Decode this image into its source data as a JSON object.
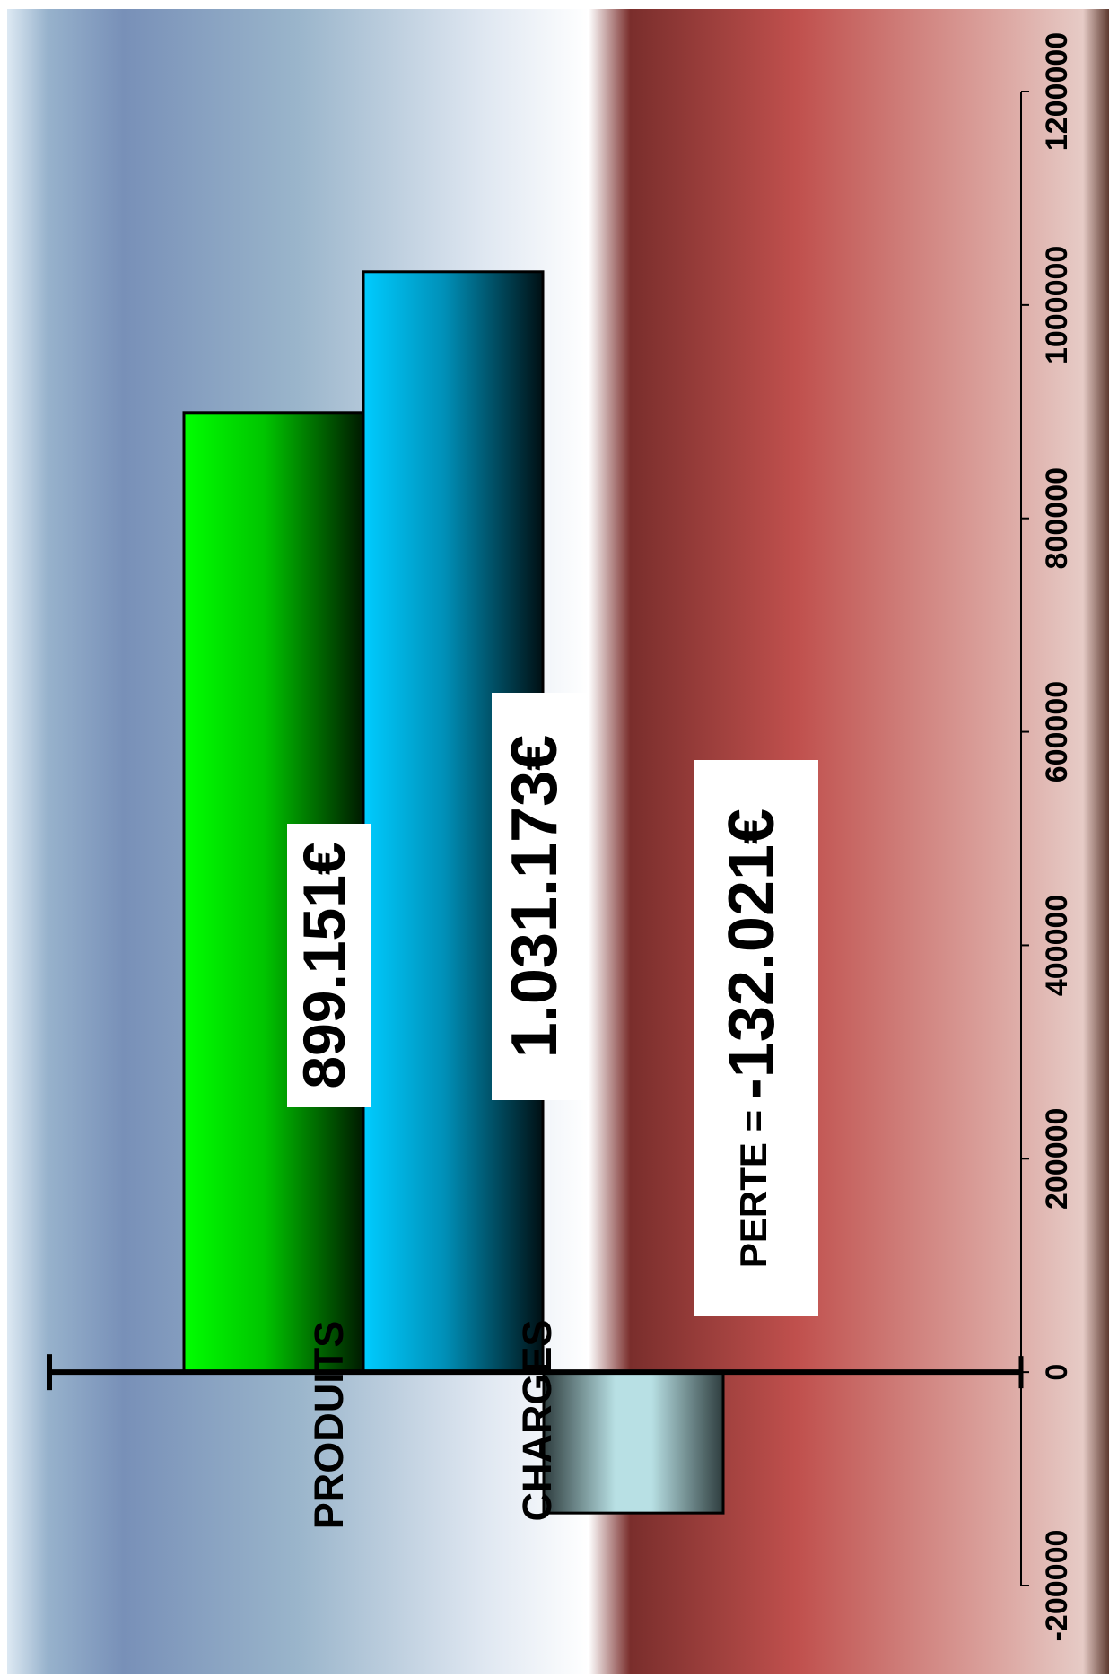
{
  "chart_data": {
    "type": "bar",
    "orientation": "horizontal",
    "rotated_view": "page rotated 90 degrees clockwise",
    "categories": [
      "PRODUITS",
      "CHARGES",
      "PERTE"
    ],
    "values": [
      899151,
      1031173,
      -132021
    ],
    "data_labels": [
      "899.151€",
      "1.031.173€",
      "-132.021€"
    ],
    "perte_label_prefix": "PERTE = ",
    "value_axis": {
      "range": [
        -200000,
        1200000
      ],
      "ticks": [
        "-200000",
        "0",
        "200000",
        "400000",
        "600000",
        "800000",
        "1000000",
        "1200000"
      ]
    },
    "grid": false,
    "legend": "none",
    "colors": {
      "produits": "#00ff00",
      "charges": "#00ccff",
      "perte": "#b8e0e4",
      "background_top": "#7e94b9",
      "background_bottom": "#c0504d"
    }
  }
}
